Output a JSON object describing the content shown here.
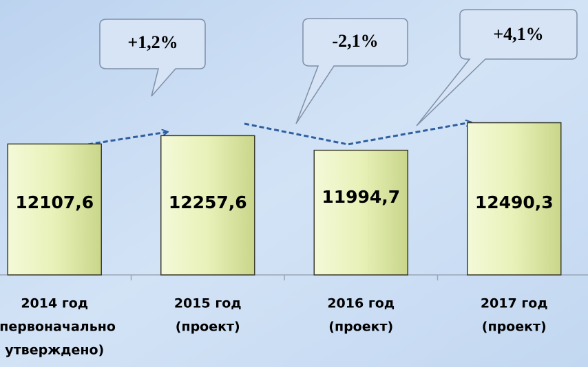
{
  "chart_data": {
    "type": "bar",
    "categories": [
      [
        "2014 год",
        "(первоначально",
        "утверждено)"
      ],
      [
        "2015 год",
        "(проект)"
      ],
      [
        "2016 год",
        "(проект)"
      ],
      [
        "2017 год",
        "(проект)"
      ]
    ],
    "values": [
      12107.6,
      12257.6,
      11994.7,
      12490.3
    ],
    "value_labels": [
      "12107,6",
      "12257,6",
      "11994,7",
      "12490,3"
    ],
    "annotations": [
      "+1,2%",
      "-2,1%",
      "+4,1%"
    ],
    "color": "#e6f0b4",
    "ylim": [
      9750,
      14700
    ]
  }
}
